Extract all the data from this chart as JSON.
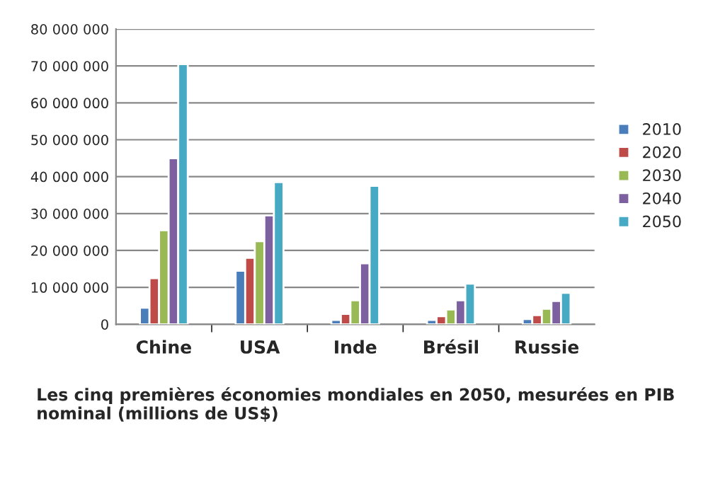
{
  "chart_data": {
    "type": "bar",
    "categories": [
      "Chine",
      "USA",
      "Inde",
      "Brésil",
      "Russie"
    ],
    "series": [
      {
        "name": "2010",
        "color": "#4a7ebb",
        "values": [
          4500000,
          14500000,
          1200000,
          1200000,
          1400000
        ]
      },
      {
        "name": "2020",
        "color": "#be4b48",
        "values": [
          12500000,
          18000000,
          2800000,
          2200000,
          2500000
        ]
      },
      {
        "name": "2030",
        "color": "#98b954",
        "values": [
          25500000,
          22500000,
          6500000,
          4000000,
          4200000
        ]
      },
      {
        "name": "2040",
        "color": "#7d60a0",
        "values": [
          45000000,
          29500000,
          16500000,
          6500000,
          6300000
        ]
      },
      {
        "name": "2050",
        "color": "#46aac5",
        "values": [
          70500000,
          38500000,
          37500000,
          11000000,
          8500000
        ]
      }
    ],
    "ylim": [
      0,
      80000000
    ],
    "yticks": [
      0,
      {
        "value": 10000000,
        "label": "10 000 000"
      },
      {
        "value": 20000000,
        "label": "20 000 000"
      },
      {
        "value": 30000000,
        "label": "30 000 000"
      },
      {
        "value": 40000000,
        "label": "40 000 000"
      },
      {
        "value": 50000000,
        "label": "50 000 000"
      },
      {
        "value": 60000000,
        "label": "60 000 000"
      },
      {
        "value": 70000000,
        "label": "70 000 000"
      },
      {
        "value": 80000000,
        "label": "80 000 000"
      }
    ],
    "grid": "y",
    "legend": "right",
    "annotations": [
      "Les cinq premières économies mondiales en 2050, mesurées en PIB nominal (millions de US$)"
    ]
  }
}
